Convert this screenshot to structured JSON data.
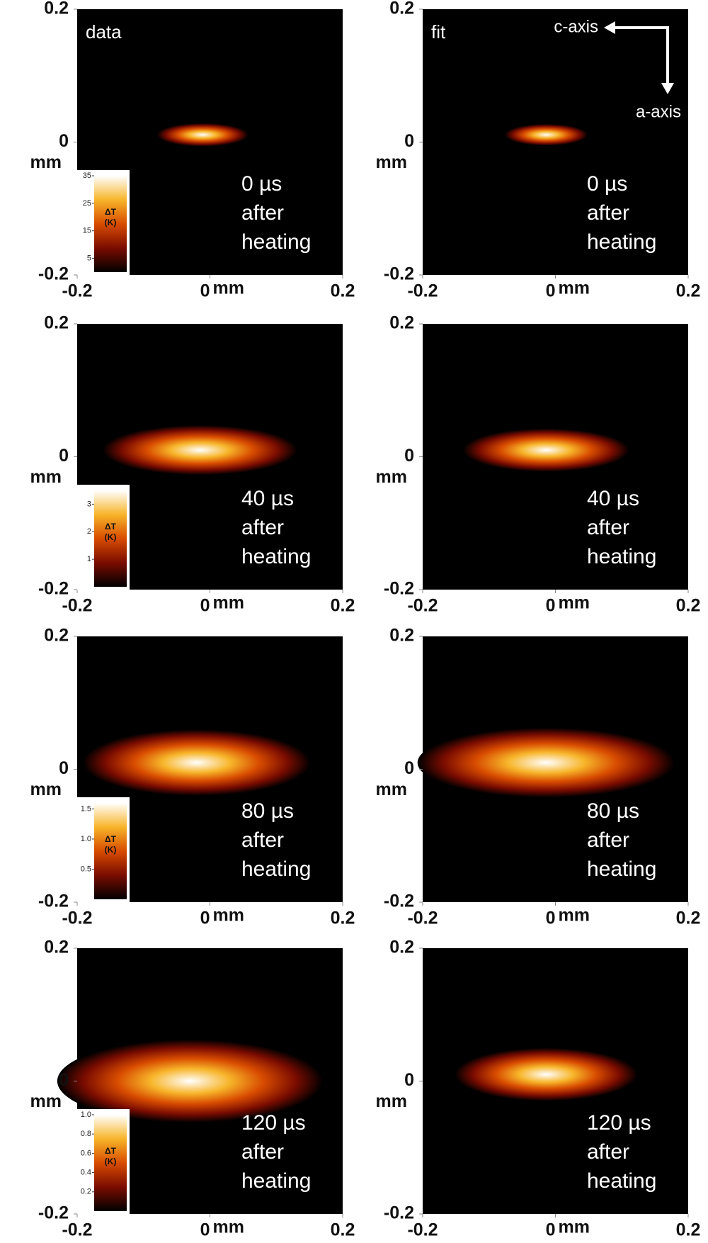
{
  "chart_data": [
    {
      "type": "heatmap",
      "title": "data",
      "annotation": [
        "0 µs",
        "after",
        "heating"
      ],
      "xlabel": "mm",
      "ylabel": "mm",
      "xlim": [
        -0.2,
        0.2
      ],
      "ylim": [
        -0.2,
        0.2
      ],
      "xticks": [
        -0.2,
        0,
        0.2
      ],
      "yticks": [
        -0.2,
        0,
        0.2
      ],
      "colormap": [
        "#000000",
        "#7a0c00",
        "#d84c00",
        "#f7b52a",
        "#ffffff"
      ],
      "spot": {
        "x": -0.011,
        "y": 0.011,
        "rx": 0.055,
        "ry": 0.014
      },
      "colorbar": {
        "label": [
          "ΔT",
          "(K)"
        ],
        "clim": [
          0,
          35
        ],
        "ticks": [
          5,
          15,
          25,
          35
        ]
      }
    },
    {
      "type": "heatmap",
      "title": "fit",
      "annotation": [
        "0 µs",
        "after",
        "heating"
      ],
      "arrows": [
        "c-axis",
        "a-axis"
      ],
      "xlabel": "mm",
      "ylabel": "mm",
      "xlim": [
        -0.2,
        0.2
      ],
      "ylim": [
        -0.2,
        0.2
      ],
      "xticks": [
        -0.2,
        0,
        0.2
      ],
      "yticks": [
        -0.2,
        0,
        0.2
      ],
      "colormap": [
        "#000000",
        "#7a0c00",
        "#d84c00",
        "#f7b52a",
        "#ffffff"
      ],
      "spot": {
        "x": -0.014,
        "y": 0.011,
        "rx": 0.05,
        "ry": 0.013
      }
    },
    {
      "type": "heatmap",
      "annotation": [
        "40 µs",
        "after",
        "heating"
      ],
      "xlabel": "mm",
      "ylabel": "mm",
      "xlim": [
        -0.2,
        0.2
      ],
      "ylim": [
        -0.2,
        0.2
      ],
      "xticks": [
        -0.2,
        0,
        0.2
      ],
      "yticks": [
        -0.2,
        0,
        0.2
      ],
      "colormap": [
        "#000000",
        "#7a0c00",
        "#d84c00",
        "#f7b52a",
        "#ffffff"
      ],
      "spot": {
        "x": -0.015,
        "y": 0.01,
        "rx": 0.117,
        "ry": 0.03
      },
      "colorbar": {
        "label": [
          "ΔT",
          "(K)"
        ],
        "clim": [
          0,
          3.5
        ],
        "ticks": [
          1,
          2,
          3
        ]
      }
    },
    {
      "type": "heatmap",
      "annotation": [
        "40 µs",
        "after",
        "heating"
      ],
      "xlabel": "mm",
      "ylabel": "mm",
      "xlim": [
        -0.2,
        0.2
      ],
      "ylim": [
        -0.2,
        0.2
      ],
      "xticks": [
        -0.2,
        0,
        0.2
      ],
      "yticks": [
        -0.2,
        0,
        0.2
      ],
      "colormap": [
        "#000000",
        "#7a0c00",
        "#d84c00",
        "#f7b52a",
        "#ffffff"
      ],
      "spot": {
        "x": -0.014,
        "y": 0.01,
        "rx": 0.1,
        "ry": 0.026
      }
    },
    {
      "type": "heatmap",
      "annotation": [
        "80 µs",
        "after",
        "heating"
      ],
      "xlabel": "mm",
      "ylabel": "mm",
      "xlim": [
        -0.2,
        0.2
      ],
      "ylim": [
        -0.2,
        0.2
      ],
      "xticks": [
        -0.2,
        0,
        0.2
      ],
      "yticks": [
        -0.2,
        0,
        0.2
      ],
      "colormap": [
        "#000000",
        "#7a0c00",
        "#d84c00",
        "#f7b52a",
        "#ffffff"
      ],
      "spot": {
        "x": -0.02,
        "y": 0.01,
        "rx": 0.137,
        "ry": 0.04
      },
      "colorbar": {
        "label": [
          "ΔT",
          "(K)"
        ],
        "clim": [
          0,
          1.6
        ],
        "ticks": [
          0.5,
          {
            "value": 1,
            "label": "1.0"
          },
          1.5
        ]
      }
    },
    {
      "type": "heatmap",
      "annotation": [
        "80 µs",
        "after",
        "heating"
      ],
      "xlabel": "mm",
      "ylabel": "mm",
      "xlim": [
        -0.2,
        0.2
      ],
      "ylim": [
        -0.2,
        0.2
      ],
      "xticks": [
        -0.2,
        0,
        0.2
      ],
      "yticks": [
        -0.2,
        0,
        0.2
      ],
      "colormap": [
        "#000000",
        "#7a0c00",
        "#d84c00",
        "#f7b52a",
        "#ffffff"
      ],
      "spot": {
        "x": -0.014,
        "y": 0.01,
        "rx": 0.155,
        "ry": 0.042
      }
    },
    {
      "type": "heatmap",
      "annotation": [
        "120 µs",
        "after",
        "heating"
      ],
      "xlabel": "mm",
      "ylabel": "mm",
      "xlim": [
        -0.2,
        0.2
      ],
      "ylim": [
        -0.2,
        0.2
      ],
      "xticks": [
        -0.2,
        0,
        0.2
      ],
      "yticks": [
        -0.2,
        0,
        0.2
      ],
      "colormap": [
        "#000000",
        "#7a0c00",
        "#d84c00",
        "#f7b52a",
        "#ffffff"
      ],
      "spot": {
        "x": -0.03,
        "y": 0.0,
        "rx": 0.16,
        "ry": 0.05
      },
      "colorbar": {
        "label": [
          "ΔT",
          "(K)"
        ],
        "clim": [
          0,
          1.0
        ],
        "ticks": [
          0.2,
          0.4,
          0.6,
          0.8,
          {
            "value": 1,
            "label": "1.0"
          }
        ]
      }
    },
    {
      "type": "heatmap",
      "annotation": [
        "120 µs",
        "after",
        "heating"
      ],
      "xlabel": "mm",
      "ylabel": "mm",
      "xlim": [
        -0.2,
        0.2
      ],
      "ylim": [
        -0.2,
        0.2
      ],
      "xticks": [
        -0.2,
        0,
        0.2
      ],
      "yticks": [
        -0.2,
        0,
        0.2
      ],
      "colormap": [
        "#000000",
        "#7a0c00",
        "#d84c00",
        "#f7b52a",
        "#ffffff"
      ],
      "spot": {
        "x": -0.014,
        "y": 0.01,
        "rx": 0.11,
        "ry": 0.032
      }
    }
  ]
}
